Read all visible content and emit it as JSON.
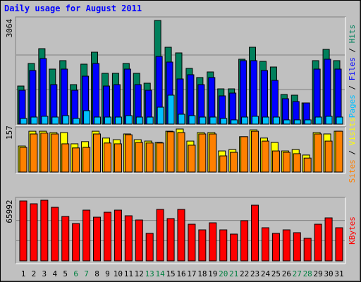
{
  "chart_data": {
    "type": "bar",
    "title": "Daily usage for August 2011",
    "categories": [
      "1",
      "2",
      "3",
      "4",
      "5",
      "6",
      "7",
      "8",
      "9",
      "10",
      "11",
      "12",
      "13",
      "14",
      "15",
      "16",
      "17",
      "18",
      "19",
      "20",
      "21",
      "22",
      "23",
      "24",
      "25",
      "26",
      "27",
      "28",
      "29",
      "30",
      "31"
    ],
    "category_colors": [
      "#000000",
      "#000000",
      "#000000",
      "#000000",
      "#000000",
      "#008040",
      "#008040",
      "#000000",
      "#000000",
      "#000000",
      "#000000",
      "#000000",
      "#008040",
      "#008040",
      "#000000",
      "#000000",
      "#000000",
      "#000000",
      "#000000",
      "#008040",
      "#008040",
      "#000000",
      "#000000",
      "#000000",
      "#000000",
      "#000000",
      "#008040",
      "#008040",
      "#000000",
      "#000000",
      "#000000"
    ],
    "legend_separator": " / ",
    "panels": [
      {
        "ylim": [
          0,
          3064
        ],
        "yticks": [
          3064
        ],
        "series": [
          {
            "name": "Hits",
            "color": "#00805c",
            "values": [
              1125,
              1792,
              2230,
              1626,
              1876,
              1167,
              1772,
              2126,
              1501,
              1501,
              1792,
              1501,
              1209,
              3064,
              2272,
              2105,
              1647,
              1376,
              1542,
              1042,
              1042,
              1918,
              2272,
              1855,
              1688,
              875,
              855,
              625,
              1876,
              2209,
              1876
            ]
          },
          {
            "name": "Files",
            "color": "#0000ff",
            "values": [
              1000,
              1584,
              1938,
              1167,
              1626,
              1000,
              1417,
              1792,
              1125,
              1167,
              1626,
              1167,
              1000,
              2001,
              1834,
              1334,
              1459,
              1167,
              1376,
              834,
              917,
              1876,
              1876,
              1584,
              1292,
              750,
              667,
              625,
              1626,
              1918,
              1626
            ]
          },
          {
            "name": "Pages",
            "color": "#00c0ff",
            "values": [
              167,
              208,
              230,
              208,
              250,
              167,
              396,
              208,
              208,
              208,
              250,
              208,
              208,
              500,
              855,
              292,
              250,
              208,
              208,
              167,
              125,
              208,
              230,
              208,
              208,
              125,
              125,
              125,
              208,
              230,
              208
            ]
          }
        ]
      },
      {
        "ylim": [
          0,
          157
        ],
        "yticks": [
          157
        ],
        "series": [
          {
            "name": "Visits",
            "color": "#ffff00",
            "values": [
              95,
              149,
              149,
              144,
              144,
              103,
              111,
              149,
              124,
              118,
              139,
              118,
              113,
              108,
              149,
              157,
              113,
              144,
              144,
              77,
              82,
              129,
              154,
              124,
              108,
              77,
              82,
              62,
              144,
              139,
              149
            ]
          },
          {
            "name": "Sites",
            "color": "#ff8000",
            "values": [
              90,
              139,
              142,
              139,
              103,
              88,
              90,
              139,
              106,
              103,
              136,
              108,
              106,
              106,
              147,
              144,
              98,
              139,
              139,
              59,
              72,
              129,
              149,
              113,
              77,
              72,
              67,
              51,
              139,
              113,
              149
            ]
          }
        ]
      },
      {
        "ylim": [
          0,
          65992
        ],
        "yticks": [
          65992
        ],
        "series": [
          {
            "name": "KBytes",
            "color": "#ff0000",
            "values": [
              65195,
              62127,
              65992,
              58292,
              48321,
              40651,
              55224,
              47554,
              52923,
              55224,
              49088,
              44486,
              29913,
              55991,
              46020,
              55991,
              39884,
              33748,
              41418,
              33748,
              29146,
              43719,
              60593,
              36049,
              29913,
              33748,
              30680,
              24544,
              39884,
              46787,
              36049
            ]
          }
        ]
      }
    ]
  }
}
